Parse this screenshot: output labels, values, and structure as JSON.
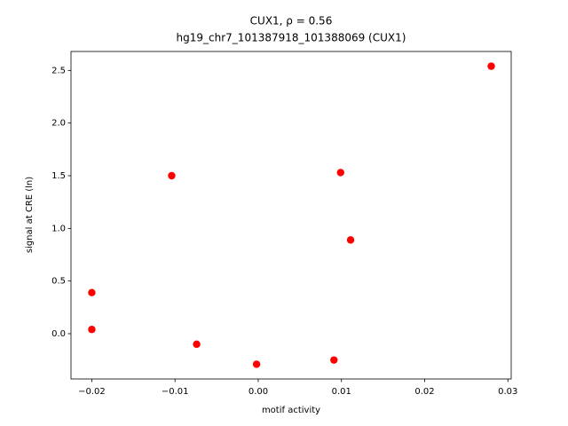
{
  "chart_data": {
    "type": "scatter",
    "title": "CUX1, ρ = 0.56",
    "subtitle": "hg19_chr7_101387918_101388069 (CUX1)",
    "x_label": "motif activity",
    "y_label": "signal at CRE (ln)",
    "color": "#ff0000",
    "x": [
      0.028,
      -0.0104,
      0.0099,
      0.0111,
      -0.02,
      -0.02,
      -0.0074,
      -0.0002,
      0.0091
    ],
    "values": [
      2.54,
      1.5,
      1.53,
      0.89,
      0.39,
      0.04,
      -0.1,
      -0.29,
      -0.25
    ],
    "xlim": [
      -0.0225,
      0.0304
    ],
    "ylim": [
      -0.43,
      2.68
    ],
    "xticks": [
      {
        "value": -0.02,
        "label": "−0.02"
      },
      {
        "value": -0.01,
        "label": "−0.01"
      },
      {
        "value": 0,
        "label": "0.00"
      },
      0.01,
      0.02,
      0.03
    ],
    "yticks": [
      {
        "value": 0,
        "label": "0.0"
      },
      0.5,
      {
        "value": 1,
        "label": "1.0"
      },
      1.5,
      {
        "value": 2,
        "label": "2.0"
      },
      2.5
    ]
  }
}
